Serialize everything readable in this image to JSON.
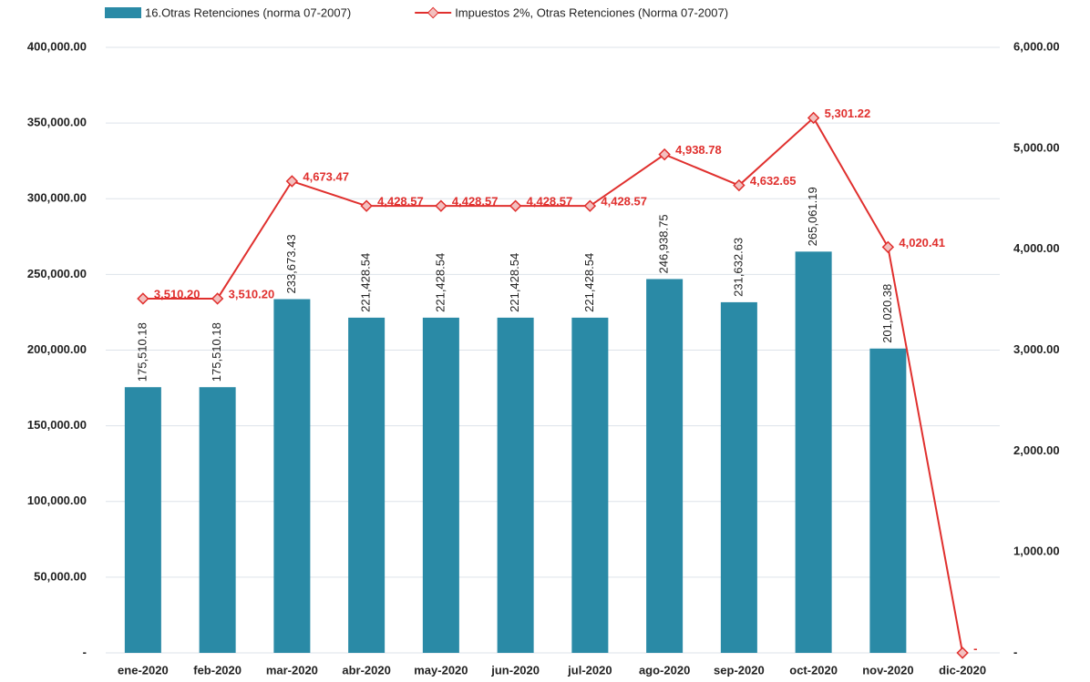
{
  "chart_data": {
    "type": "bar_line",
    "categories": [
      "ene-2020",
      "feb-2020",
      "mar-2020",
      "abr-2020",
      "may-2020",
      "jun-2020",
      "jul-2020",
      "ago-2020",
      "sep-2020",
      "oct-2020",
      "nov-2020",
      "dic-2020"
    ],
    "series": [
      {
        "name": "16.Otras Retenciones (norma 07-2007)",
        "type": "bar",
        "color": "#2a8aa6",
        "values": [
          175510.18,
          175510.18,
          233673.43,
          221428.54,
          221428.54,
          221428.54,
          221428.54,
          246938.75,
          231632.63,
          265061.19,
          201020.38,
          null
        ],
        "value_labels": [
          "175,510.18",
          "175,510.18",
          "233,673.43",
          "221,428.54",
          "221,428.54",
          "221,428.54",
          "221,428.54",
          "246,938.75",
          "231,632.63",
          "265,061.19",
          "201,020.38",
          null
        ]
      },
      {
        "name": "Impuestos 2%, Otras Retenciones (Norma 07-2007)",
        "type": "line",
        "axis": "y2",
        "color": "#e0302e",
        "values": [
          3510.2,
          3510.2,
          4673.47,
          4428.57,
          4428.57,
          4428.57,
          4428.57,
          4938.78,
          4632.65,
          5301.22,
          4020.41,
          0
        ],
        "value_labels": [
          "3,510.20",
          "3,510.20",
          "4,673.47",
          "4,428.57",
          "4,428.57",
          "4,428.57",
          "4,428.57",
          "4,938.78",
          "4,632.65",
          "5,301.22",
          "4,020.41",
          "-"
        ]
      }
    ],
    "ylim": [
      0,
      400000
    ],
    "yticks": [
      {
        "value": 0,
        "label": "-"
      },
      {
        "value": 50000,
        "label": "50,000.00"
      },
      {
        "value": 100000,
        "label": "100,000.00"
      },
      {
        "value": 150000,
        "label": "150,000.00"
      },
      {
        "value": 200000,
        "label": "200,000.00"
      },
      {
        "value": 250000,
        "label": "250,000.00"
      },
      {
        "value": 300000,
        "label": "300,000.00"
      },
      {
        "value": 350000,
        "label": "350,000.00"
      },
      {
        "value": 400000,
        "label": "400,000.00"
      }
    ],
    "y2lim": [
      0,
      6000
    ],
    "y2ticks": [
      {
        "value": 0,
        "label": "-"
      },
      {
        "value": 1000,
        "label": "1,000.00"
      },
      {
        "value": 2000,
        "label": "2,000.00"
      },
      {
        "value": 3000,
        "label": "3,000.00"
      },
      {
        "value": 4000,
        "label": "4,000.00"
      },
      {
        "value": 5000,
        "label": "5,000.00"
      },
      {
        "value": 6000,
        "label": "6,000.00"
      }
    ],
    "grid": true,
    "legend": "top-left"
  }
}
